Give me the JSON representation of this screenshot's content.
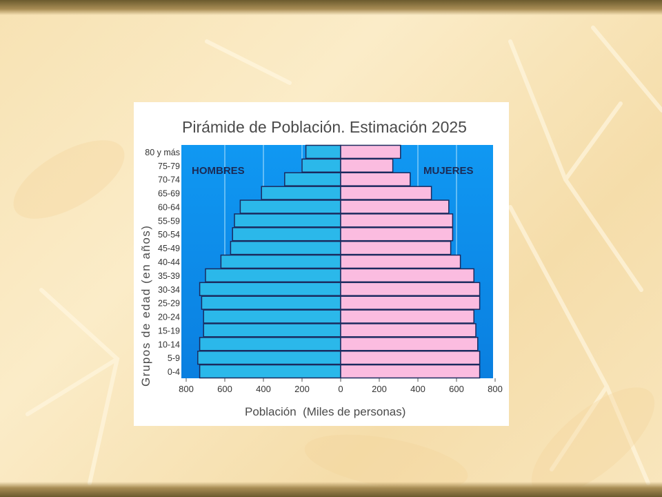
{
  "chart_data": {
    "type": "bar",
    "title": "Pirámide de Población. Estimación 2025",
    "xlabel": "Población  (Miles de personas)",
    "ylabel": "Grupos de edad (en años)",
    "xlim": [
      -800,
      800
    ],
    "xticks": [
      "800",
      "600",
      "400",
      "200",
      "0",
      "200",
      "400",
      "600",
      "800"
    ],
    "categories": [
      "80 y más",
      "75-79",
      "70-74",
      "65-69",
      "60-64",
      "55-59",
      "50-54",
      "45-49",
      "40-44",
      "35-39",
      "30-34",
      "25-29",
      "20-24",
      "15-19",
      "10-14",
      "5-9",
      "0-4"
    ],
    "series": [
      {
        "name": "HOMBRES",
        "values": [
          180,
          200,
          290,
          410,
          520,
          550,
          560,
          570,
          620,
          700,
          730,
          720,
          710,
          710,
          730,
          740,
          730
        ]
      },
      {
        "name": "MUJERES",
        "values": [
          310,
          270,
          360,
          470,
          560,
          580,
          580,
          570,
          620,
          690,
          720,
          720,
          690,
          700,
          710,
          720,
          720
        ]
      }
    ],
    "grid": true,
    "colors": {
      "hombres": "#2bb8ea",
      "mujeres": "#fbbce0",
      "background": "#0e8ff0",
      "bar_outline": "#1b2a5e"
    }
  }
}
